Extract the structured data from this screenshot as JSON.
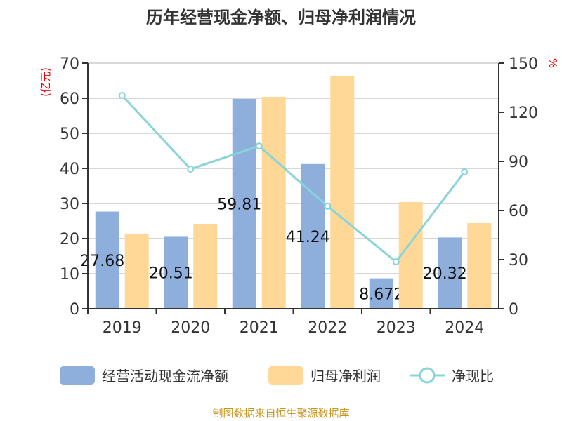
{
  "chart_data": {
    "type": "bar",
    "title": "历年经营现金净额、归母净利润情况",
    "categories": [
      "2019",
      "2020",
      "2021",
      "2022",
      "2023",
      "2024"
    ],
    "y_left": {
      "label": "(亿元)",
      "range": [
        0,
        70
      ],
      "ticks": [
        0,
        10,
        20,
        30,
        40,
        50,
        60,
        70
      ]
    },
    "y_right": {
      "label": "%",
      "range": [
        0,
        150
      ],
      "ticks": [
        0,
        30,
        60,
        90,
        120,
        150
      ]
    },
    "grid": true,
    "legend_position": "bottom",
    "series": [
      {
        "name": "经营活动现金流净额",
        "type": "bar",
        "axis": "left",
        "color": "#8eaedb",
        "values": [
          27.686,
          20.515,
          59.812,
          41.241,
          8.672,
          20.322
        ],
        "labels": [
          "27.686",
          "20.515",
          "59.812",
          "41.241",
          "8.672",
          "20.322"
        ]
      },
      {
        "name": "归母净利润",
        "type": "bar",
        "axis": "left",
        "color": "#ffd898",
        "values": [
          21.4,
          24.2,
          60.4,
          66.4,
          30.4,
          24.4
        ]
      },
      {
        "name": "净现比",
        "type": "line",
        "axis": "right",
        "color": "#88d4d8",
        "values": [
          130.3,
          85.3,
          99.4,
          62.6,
          28.7,
          83.6
        ]
      }
    ]
  },
  "footer": "制图数据来自恒生聚源数据库"
}
